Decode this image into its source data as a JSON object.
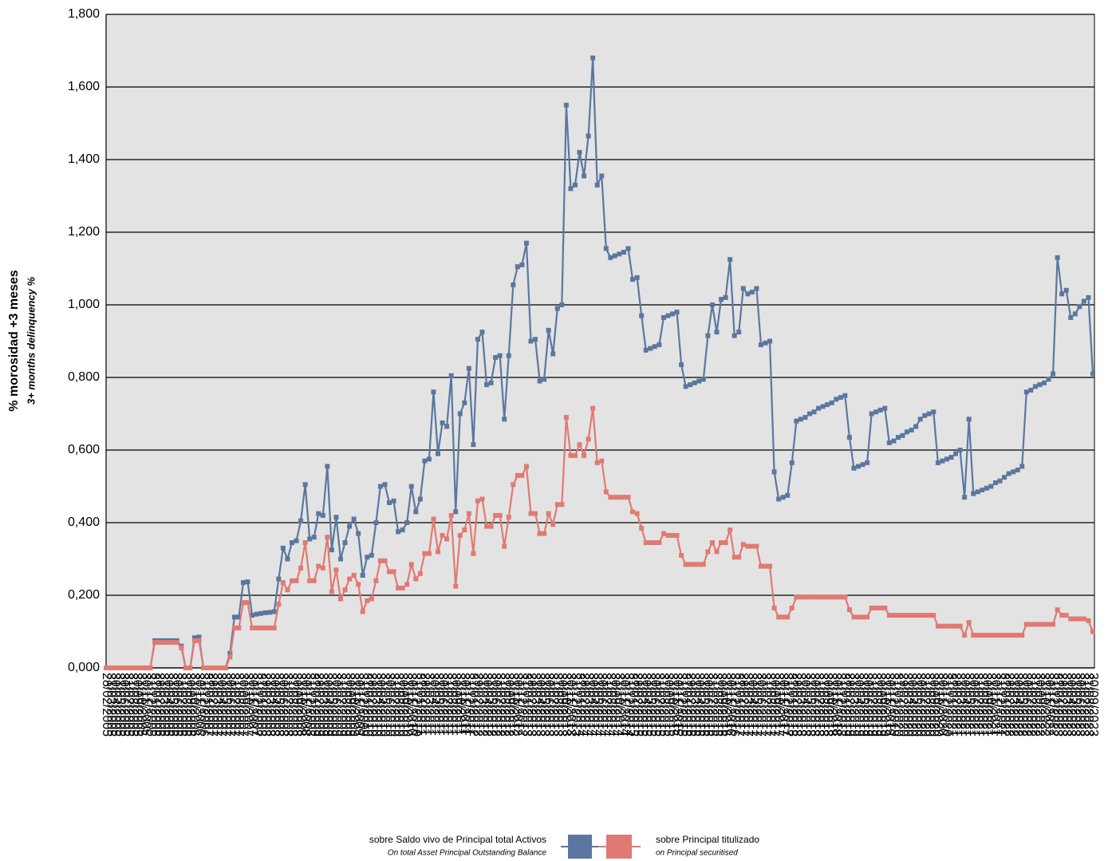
{
  "chart_data": {
    "type": "line",
    "ylabel": "% morosidad +3 meses",
    "ylabel_en": "3+ months delinquency %",
    "ylim": [
      0,
      1.8
    ],
    "yticks": [
      {
        "value": 0,
        "label": "0,000"
      },
      {
        "value": 0.2,
        "label": "0,200"
      },
      {
        "value": 0.4,
        "label": "0,400"
      },
      {
        "value": 0.6,
        "label": "0,600"
      },
      {
        "value": 0.8,
        "label": "0,800"
      },
      {
        "value": 1.0,
        "label": "1,000"
      },
      {
        "value": 1.2,
        "label": "1,200"
      },
      {
        "value": 1.4,
        "label": "1,400"
      },
      {
        "value": 1.6,
        "label": "1,600"
      },
      {
        "value": 1.8,
        "label": "1,800"
      }
    ],
    "grid": true,
    "legend_position": "bottom",
    "categories": [
      "28/02/2005",
      "31/03/2005",
      "30/04/2005",
      "31/05/2005",
      "30/06/2005",
      "31/07/2005",
      "31/08/2005",
      "30/09/2005",
      "31/10/2005",
      "30/11/2005",
      "31/12/2005",
      "31/01/2006",
      "28/02/2006",
      "31/03/2006",
      "30/04/2006",
      "31/05/2006",
      "30/06/2006",
      "31/07/2006",
      "31/08/2006",
      "30/09/2006",
      "31/10/2006",
      "30/11/2006",
      "31/12/2006",
      "31/01/2007",
      "28/02/2007",
      "31/03/2007",
      "30/04/2007",
      "31/05/2007",
      "30/06/2007",
      "31/07/2007",
      "31/08/2007",
      "30/09/2007",
      "31/10/2007",
      "30/11/2007",
      "31/12/2007",
      "31/01/2008",
      "29/02/2008",
      "31/03/2008",
      "30/04/2008",
      "31/05/2008",
      "30/06/2008",
      "31/07/2008",
      "31/08/2008",
      "30/09/2008",
      "31/10/2008",
      "30/11/2008",
      "31/12/2008",
      "31/01/2009",
      "28/02/2009",
      "31/03/2009",
      "30/04/2009",
      "31/05/2009",
      "30/06/2009",
      "31/07/2009",
      "31/08/2009",
      "30/09/2009",
      "31/10/2009",
      "30/11/2009",
      "31/12/2009",
      "31/01/2010",
      "28/02/2010",
      "31/03/2010",
      "30/04/2010",
      "31/05/2010",
      "30/06/2010",
      "31/07/2010",
      "31/08/2010",
      "30/09/2010",
      "31/10/2010",
      "30/11/2010",
      "31/12/2010",
      "31/01/2011",
      "28/02/2011",
      "31/03/2011",
      "30/04/2011",
      "31/05/2011",
      "30/06/2011",
      "31/07/2011",
      "31/08/2011",
      "30/09/2011",
      "31/10/2011",
      "30/11/2011",
      "31/12/2011",
      "31/01/2012",
      "29/02/2012",
      "31/03/2012",
      "30/04/2012",
      "31/05/2012",
      "30/06/2012",
      "31/07/2012",
      "31/08/2012",
      "30/09/2012",
      "31/10/2012",
      "30/11/2012",
      "31/12/2012",
      "31/01/2013",
      "28/02/2013",
      "31/03/2013",
      "30/04/2013",
      "31/05/2013",
      "30/06/2013",
      "31/07/2013",
      "31/08/2013",
      "30/09/2013",
      "31/10/2013",
      "30/11/2013",
      "31/12/2013",
      "31/01/2014",
      "28/02/2014",
      "31/03/2014",
      "30/04/2014",
      "31/05/2014",
      "30/06/2014",
      "31/07/2014",
      "31/08/2014",
      "30/09/2014",
      "31/10/2014",
      "30/11/2014",
      "31/12/2014",
      "31/01/2015",
      "28/02/2015",
      "31/03/2015",
      "30/04/2015",
      "31/05/2015",
      "30/06/2015",
      "31/07/2015",
      "31/08/2015",
      "30/09/2015",
      "31/10/2015",
      "30/11/2015",
      "31/12/2015",
      "31/01/2016",
      "29/02/2016",
      "31/03/2016",
      "30/04/2016",
      "31/05/2016",
      "30/06/2016",
      "31/07/2016",
      "31/08/2016",
      "30/09/2016",
      "31/10/2016",
      "30/11/2016",
      "31/12/2016",
      "31/01/2017",
      "28/02/2017",
      "31/03/2017",
      "30/04/2017",
      "31/05/2017",
      "30/06/2017",
      "31/07/2017",
      "31/08/2017",
      "30/09/2017",
      "31/10/2017",
      "30/11/2017",
      "31/12/2017",
      "31/01/2018",
      "28/02/2018",
      "31/03/2018",
      "30/04/2018",
      "31/05/2018",
      "30/06/2018",
      "31/07/2018",
      "31/08/2018",
      "30/09/2018",
      "31/10/2018",
      "30/11/2018",
      "31/12/2018",
      "31/01/2019",
      "28/02/2019",
      "31/03/2019",
      "30/04/2019",
      "31/05/2019",
      "30/06/2019",
      "31/07/2019",
      "31/08/2019",
      "30/09/2019",
      "31/10/2019",
      "30/11/2019",
      "31/12/2019",
      "31/01/2020",
      "29/02/2020",
      "31/03/2020",
      "30/04/2020",
      "31/05/2020",
      "30/06/2020",
      "31/07/2020",
      "31/08/2020",
      "30/09/2020",
      "31/10/2020",
      "30/11/2020",
      "31/12/2020",
      "31/01/2021",
      "28/02/2021",
      "31/03/2021",
      "30/04/2021",
      "31/05/2021",
      "30/06/2021",
      "31/07/2021",
      "31/08/2021",
      "30/09/2021",
      "31/10/2021",
      "30/11/2021",
      "31/12/2021",
      "31/01/2022",
      "28/02/2022",
      "31/03/2022",
      "30/04/2022",
      "31/05/2022",
      "30/06/2022",
      "31/07/2022",
      "31/08/2022",
      "30/09/2022",
      "31/10/2022",
      "30/11/2022",
      "31/12/2022",
      "31/01/2023",
      "28/02/2023",
      "31/03/2023",
      "30/04/2023",
      "31/05/2023",
      "30/06/2023",
      "31/07/2023",
      "31/08/2023",
      "30/09/2023"
    ],
    "series": [
      {
        "name": "sobre Saldo vivo de Principal total Activos",
        "name_en": "On total Asset Principal Outstanding Balance",
        "color": "#5b77a0",
        "values": [
          0,
          0,
          0,
          0,
          0,
          0,
          0,
          0,
          0,
          0,
          0,
          0.075,
          0.075,
          0.075,
          0.075,
          0.075,
          0.075,
          0.06,
          0,
          0,
          0.083,
          0.085,
          0,
          0,
          0,
          0,
          0,
          0,
          0.04,
          0.14,
          0.14,
          0.235,
          0.237,
          0.145,
          0.148,
          0.15,
          0.152,
          0.153,
          0.155,
          0.245,
          0.33,
          0.3,
          0.345,
          0.35,
          0.405,
          0.505,
          0.355,
          0.36,
          0.425,
          0.42,
          0.555,
          0.325,
          0.415,
          0.3,
          0.345,
          0.39,
          0.41,
          0.37,
          0.255,
          0.305,
          0.31,
          0.4,
          0.5,
          0.505,
          0.455,
          0.46,
          0.375,
          0.38,
          0.4,
          0.5,
          0.43,
          0.465,
          0.57,
          0.575,
          0.76,
          0.59,
          0.675,
          0.665,
          0.805,
          0.43,
          0.7,
          0.73,
          0.825,
          0.615,
          0.905,
          0.925,
          0.78,
          0.785,
          0.855,
          0.86,
          0.685,
          0.86,
          1.055,
          1.105,
          1.11,
          1.17,
          0.9,
          0.905,
          0.79,
          0.795,
          0.93,
          0.865,
          0.99,
          1.0,
          1.55,
          1.32,
          1.33,
          1.42,
          1.355,
          1.465,
          1.68,
          1.33,
          1.355,
          1.155,
          1.13,
          1.135,
          1.14,
          1.145,
          1.155,
          1.07,
          1.075,
          0.97,
          0.875,
          0.88,
          0.885,
          0.89,
          0.965,
          0.97,
          0.975,
          0.98,
          0.835,
          0.775,
          0.78,
          0.785,
          0.79,
          0.795,
          0.915,
          1.0,
          0.925,
          1.015,
          1.02,
          1.125,
          0.915,
          0.925,
          1.045,
          1.03,
          1.035,
          1.045,
          0.89,
          0.895,
          0.9,
          0.54,
          0.465,
          0.47,
          0.475,
          0.565,
          0.68,
          0.685,
          0.69,
          0.7,
          0.705,
          0.715,
          0.72,
          0.725,
          0.73,
          0.74,
          0.745,
          0.75,
          0.635,
          0.55,
          0.555,
          0.56,
          0.565,
          0.7,
          0.705,
          0.71,
          0.715,
          0.62,
          0.625,
          0.635,
          0.64,
          0.65,
          0.655,
          0.665,
          0.685,
          0.695,
          0.7,
          0.705,
          0.565,
          0.57,
          0.575,
          0.58,
          0.59,
          0.6,
          0.47,
          0.685,
          0.48,
          0.485,
          0.49,
          0.495,
          0.5,
          0.51,
          0.515,
          0.525,
          0.535,
          0.54,
          0.545,
          0.555,
          0.76,
          0.765,
          0.775,
          0.78,
          0.785,
          0.795,
          0.81,
          1.13,
          1.03,
          1.04,
          0.965,
          0.975,
          0.995,
          1.01,
          1.02,
          0.81
        ]
      },
      {
        "name": "sobre Principal titulizado",
        "name_en": "on Principal securitised",
        "color": "#e07a72",
        "values": [
          0,
          0,
          0,
          0,
          0,
          0,
          0,
          0,
          0,
          0,
          0,
          0.07,
          0.07,
          0.07,
          0.07,
          0.07,
          0.07,
          0.055,
          0,
          0,
          0.075,
          0.075,
          0,
          0,
          0,
          0,
          0,
          0,
          0.03,
          0.11,
          0.11,
          0.18,
          0.18,
          0.11,
          0.11,
          0.11,
          0.11,
          0.11,
          0.11,
          0.175,
          0.235,
          0.215,
          0.24,
          0.24,
          0.275,
          0.345,
          0.24,
          0.24,
          0.28,
          0.275,
          0.36,
          0.21,
          0.27,
          0.19,
          0.215,
          0.245,
          0.255,
          0.23,
          0.155,
          0.185,
          0.19,
          0.24,
          0.295,
          0.295,
          0.265,
          0.265,
          0.22,
          0.22,
          0.23,
          0.285,
          0.245,
          0.26,
          0.315,
          0.315,
          0.41,
          0.32,
          0.365,
          0.355,
          0.42,
          0.225,
          0.365,
          0.38,
          0.425,
          0.315,
          0.46,
          0.465,
          0.39,
          0.39,
          0.42,
          0.42,
          0.335,
          0.415,
          0.505,
          0.53,
          0.53,
          0.555,
          0.425,
          0.425,
          0.37,
          0.37,
          0.425,
          0.395,
          0.45,
          0.45,
          0.69,
          0.585,
          0.585,
          0.615,
          0.585,
          0.63,
          0.715,
          0.565,
          0.57,
          0.485,
          0.47,
          0.47,
          0.47,
          0.47,
          0.47,
          0.43,
          0.425,
          0.385,
          0.345,
          0.345,
          0.345,
          0.345,
          0.37,
          0.365,
          0.365,
          0.365,
          0.31,
          0.285,
          0.285,
          0.285,
          0.285,
          0.285,
          0.32,
          0.345,
          0.32,
          0.345,
          0.345,
          0.38,
          0.305,
          0.305,
          0.34,
          0.335,
          0.335,
          0.335,
          0.28,
          0.28,
          0.28,
          0.165,
          0.14,
          0.14,
          0.14,
          0.165,
          0.195,
          0.195,
          0.195,
          0.195,
          0.195,
          0.195,
          0.195,
          0.195,
          0.195,
          0.195,
          0.195,
          0.195,
          0.16,
          0.14,
          0.14,
          0.14,
          0.14,
          0.165,
          0.165,
          0.165,
          0.165,
          0.145,
          0.145,
          0.145,
          0.145,
          0.145,
          0.145,
          0.145,
          0.145,
          0.145,
          0.145,
          0.145,
          0.115,
          0.115,
          0.115,
          0.115,
          0.115,
          0.115,
          0.09,
          0.125,
          0.09,
          0.09,
          0.09,
          0.09,
          0.09,
          0.09,
          0.09,
          0.09,
          0.09,
          0.09,
          0.09,
          0.09,
          0.12,
          0.12,
          0.12,
          0.12,
          0.12,
          0.12,
          0.12,
          0.16,
          0.145,
          0.145,
          0.135,
          0.135,
          0.135,
          0.135,
          0.13,
          0.1
        ]
      }
    ]
  }
}
